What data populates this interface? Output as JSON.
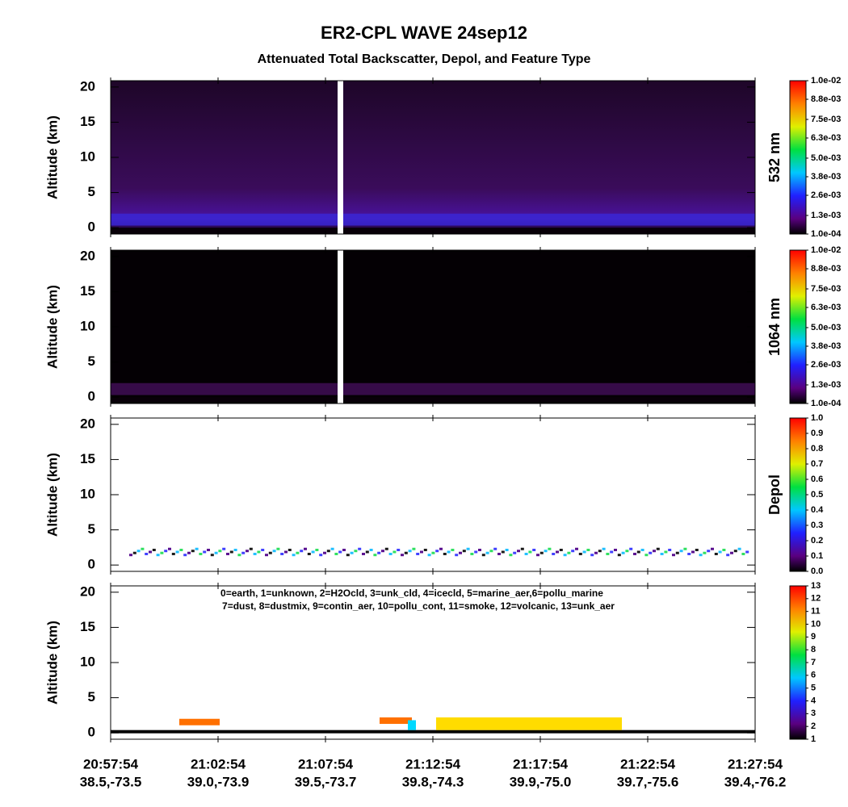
{
  "title": "ER2-CPL WAVE 24sep12",
  "subtitle": "Attenuated Total Backscatter, Depol, and Feature Type",
  "x_axis": {
    "times": [
      "20:57:54",
      "21:02:54",
      "21:07:54",
      "21:12:54",
      "21:17:54",
      "21:22:54",
      "21:27:54"
    ],
    "positions": [
      "38.5,-73.5",
      "39.0,-73.9",
      "39.5,-73.7",
      "39.8,-74.3",
      "39.9,-75.0",
      "39.7,-75.6",
      "39.4,-76.2"
    ]
  },
  "chart_data": [
    {
      "type": "heatmap",
      "ylabel": "Altitude (km)",
      "ylim": [
        -0.9,
        20.9
      ],
      "yticks": [
        0,
        5,
        10,
        15,
        20
      ],
      "colorbar": {
        "label": "532 nm",
        "clim": [
          0.0001,
          0.01
        ],
        "ticks": [
          {
            "value": 0.0001,
            "label": "1.0e-04"
          },
          {
            "value": 0.0013,
            "label": "1.3e-03"
          },
          {
            "value": 0.0026,
            "label": "2.6e-03"
          },
          {
            "value": 0.0038,
            "label": "3.8e-03"
          },
          {
            "value": 0.005,
            "label": "5.0e-03"
          },
          {
            "value": 0.0063,
            "label": "6.3e-03"
          },
          {
            "value": 0.0075,
            "label": "7.5e-03"
          },
          {
            "value": 0.0088,
            "label": "8.8e-03"
          },
          {
            "value": 0.01,
            "label": "1.0e-02"
          }
        ]
      }
    },
    {
      "type": "heatmap",
      "ylabel": "Altitude (km)",
      "ylim": [
        -0.9,
        20.9
      ],
      "yticks": [
        0,
        5,
        10,
        15,
        20
      ],
      "colorbar": {
        "label": "1064 nm",
        "clim": [
          0.0001,
          0.01
        ],
        "ticks": [
          {
            "value": 0.0001,
            "label": "1.0e-04"
          },
          {
            "value": 0.0013,
            "label": "1.3e-03"
          },
          {
            "value": 0.0026,
            "label": "2.6e-03"
          },
          {
            "value": 0.0038,
            "label": "3.8e-03"
          },
          {
            "value": 0.005,
            "label": "5.0e-03"
          },
          {
            "value": 0.0063,
            "label": "6.3e-03"
          },
          {
            "value": 0.0075,
            "label": "7.5e-03"
          },
          {
            "value": 0.0088,
            "label": "8.8e-03"
          },
          {
            "value": 0.01,
            "label": "1.0e-02"
          }
        ]
      }
    },
    {
      "type": "heatmap",
      "ylabel": "Altitude (km)",
      "ylim": [
        -0.9,
        20.9
      ],
      "yticks": [
        0,
        5,
        10,
        15,
        20
      ],
      "colorbar": {
        "label": "Depol",
        "clim": [
          0,
          1
        ],
        "ticks": [
          {
            "value": 0,
            "label": "0.0"
          },
          0.1,
          0.2,
          0.3,
          0.4,
          0.5,
          0.6,
          0.7,
          0.8,
          0.9,
          {
            "value": 1,
            "label": "1.0"
          }
        ]
      }
    },
    {
      "type": "heatmap",
      "ylabel": "Altitude (km)",
      "ylim": [
        -0.9,
        20.9
      ],
      "yticks": [
        0,
        5,
        10,
        15,
        20
      ],
      "annotations": [
        "0=earth, 1=unknown, 2=H2Ocld, 3=unk_cld, 4=icecld, 5=marine_aer,6=pollu_marine",
        "7=dust, 8=dustmix, 9=contin_aer, 10=pollu_cont, 11=smoke, 12=volcanic, 13=unk_aer"
      ],
      "colorbar": {
        "clim": [
          1,
          13
        ],
        "ticks": [
          1,
          2,
          3,
          4,
          5,
          6,
          7,
          8,
          9,
          10,
          11,
          12,
          13
        ]
      }
    }
  ]
}
